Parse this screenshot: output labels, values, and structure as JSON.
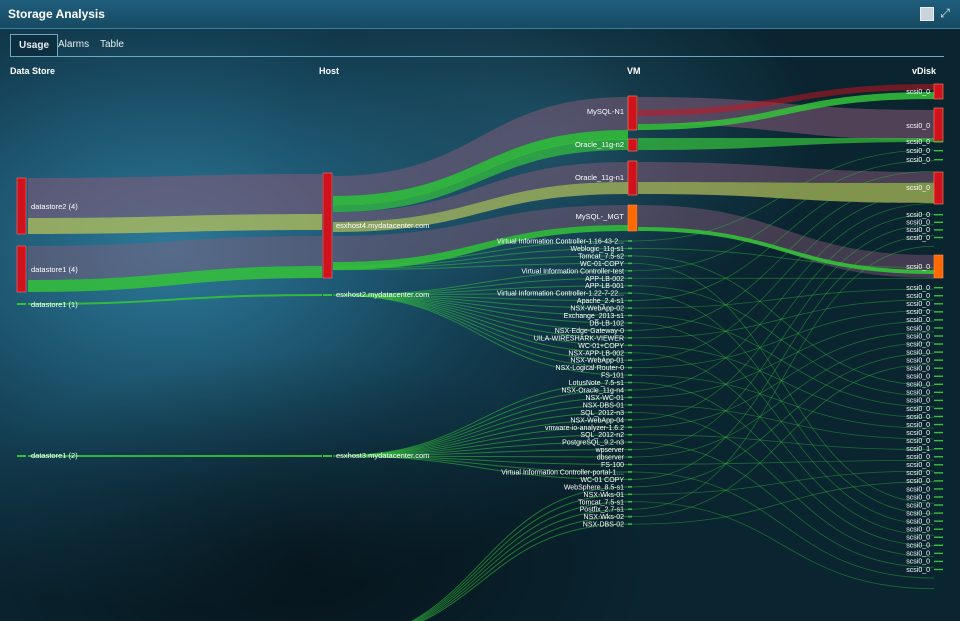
{
  "window": {
    "title": "Storage Analysis",
    "maximize_icon": "expand-icon",
    "square_icon": "window-square-icon"
  },
  "tabs": [
    {
      "label": "Usage",
      "active": true
    },
    {
      "label": "Alarms",
      "active": false
    },
    {
      "label": "Table",
      "active": false
    }
  ],
  "columns": {
    "datastore": "Data Store",
    "host": "Host",
    "vm": "VM",
    "vdisk": "vDisk"
  },
  "colors": {
    "red": "#d0121d",
    "orange": "#ff6a00",
    "green": "#35c23a",
    "yellow": "#b7c25a",
    "mauve": "#8a5a78"
  },
  "datastores": [
    "datastore2 (4)",
    "datastore1 (4)",
    "datastore1 (1)",
    "datastore1 (2)"
  ],
  "hosts": [
    "esxhost4.mydatacenter.com",
    "esxhost2.mydatacenter.com",
    "esxhost3.mydatacenter.com"
  ],
  "vms_large": [
    "MySQL-N1",
    "Oracle_11g-n2",
    "Oracle_11g-n1",
    "MySQL-_MGT"
  ],
  "vms_small": [
    "Virtual Information Controller-1.16-43-2...",
    "Weblogic_11g-s1",
    "Tomcat_7.5-s2",
    "WC-01-COPY",
    "Virtual Information Controller-test",
    "APP-LB-002",
    "APP-LB-001",
    "Virtual Information Controller-1.22-7-22...",
    "Apache_2.4-s1",
    "NSX-WebApp-02",
    "Exchange_2013-s1",
    "DB-LB-102",
    "NSX-Edge-Gateway-0",
    "UILA-WIRESHARK-VIEWER",
    "WC-01+COPY",
    "NSX-APP-LB-002",
    "NSX-WebApp-01",
    "NSX-Logical-Router-0",
    "FS-101",
    "LotusNote_7.5-s1",
    "NSX-Oracle_11g-n4",
    "NSX-WC-01",
    "NSX-DBS-01",
    "SQL_2012-n3",
    "NSX-WebApp-04",
    "vmware-io-analyzer-1.6.2",
    "SQL_2012-n2",
    "PostgreSQL_9.2-n3",
    "wpserver",
    "dbserver",
    "FS-100",
    "Virtual Information Controller-portal-1....",
    "WC-01 COPY",
    "WebSphere_8.5-s1",
    "NSX-Wks-01",
    "Tomcat_7.5-s1",
    "Postfix_2.7-s1",
    "NSX-Wks-02",
    "NSX-DBS-02"
  ],
  "vdisks_large": [
    "scsi0_0",
    "scsi0_0",
    "scsi0_0",
    "scsi0_0"
  ],
  "vdisks_small": [
    "scsi0_0",
    "scsi0_0",
    "scsi0_0",
    "scsi0_0",
    "scsi0_0",
    "scsi0_0",
    "scsi0_0",
    "scsi0_0",
    "scsi0_0",
    "scsi0_0",
    "scsi0_0",
    "scsi0_0",
    "scsi0_0",
    "scsi0_0",
    "scsi0_0",
    "scsi0_0",
    "scsi0_0",
    "scsi0_0",
    "scsi0_0",
    "scsi0_0",
    "scsi0_0",
    "scsi0_0",
    "scsi0_0",
    "scsi0_0",
    "scsi0_0",
    "scsi0_0",
    "scsi0_0",
    "scsi0_1",
    "scsi0_0",
    "scsi0_0",
    "scsi0_0",
    "scsi0_0",
    "scsi0_0",
    "scsi0_0",
    "scsi0_0",
    "scsi0_0",
    "scsi0_0",
    "scsi0_0",
    "scsi0_0",
    "scsi0_0",
    "scsi0_0",
    "scsi0_0",
    "scsi0_0"
  ]
}
